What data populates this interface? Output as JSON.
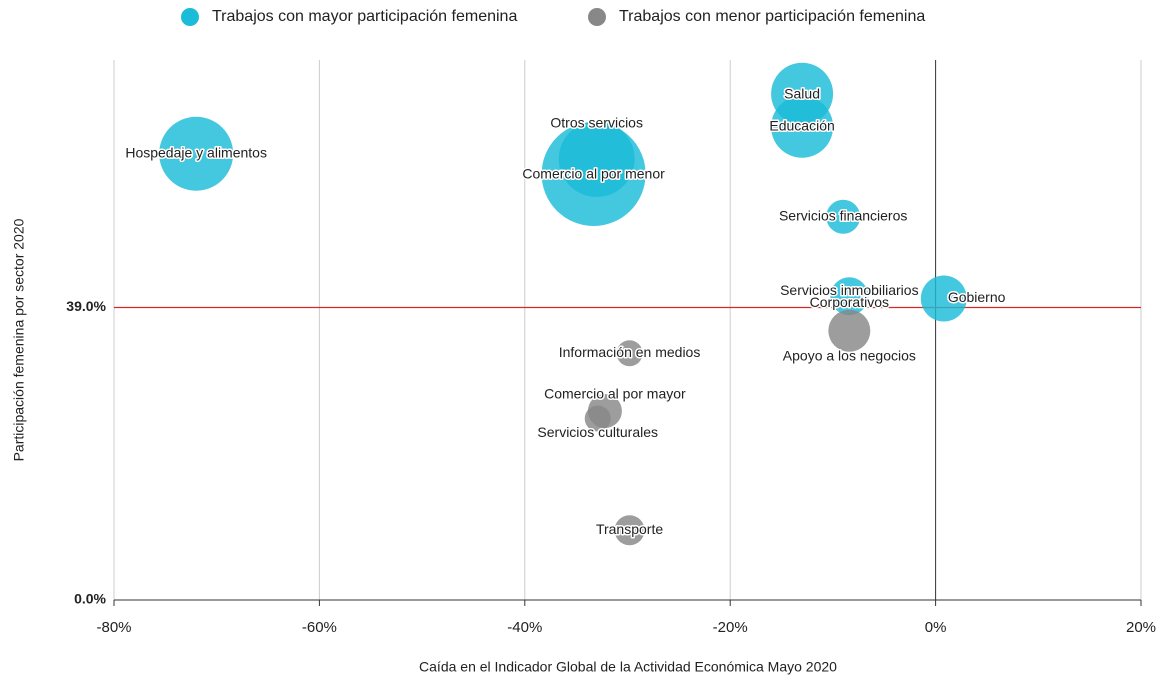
{
  "chart_data": {
    "type": "bubble",
    "xlabel": "Caída en el Indicador Global de la Actividad Económica Mayo 2020",
    "ylabel": "Participación femenina por sector 2020",
    "xlim": [
      -80,
      20
    ],
    "ylim": [
      0,
      72
    ],
    "xticks": [
      {
        "value": -80,
        "label": "-80%"
      },
      {
        "value": -60,
        "label": "-60%"
      },
      {
        "value": -40,
        "label": "-40%"
      },
      {
        "value": -20,
        "label": "-20%"
      },
      {
        "value": 0,
        "label": "0%"
      },
      {
        "value": 20,
        "label": "20%"
      }
    ],
    "yticks": [
      {
        "value": 0,
        "label": "0.0%"
      },
      {
        "value": 39,
        "label": "39.0%"
      }
    ],
    "reference_line": {
      "y": 39,
      "color": "#d62728"
    },
    "grid": true,
    "legend": "top",
    "series": [
      {
        "name": "Trabajos con mayor participación femenina",
        "color": "#1bbcd8",
        "labels": [
          [
            "Hospedaje y alimentos"
          ],
          [
            "Otros servicios"
          ],
          [
            "Comercio al por menor"
          ],
          [
            "Salud"
          ],
          [
            "Educación"
          ],
          [
            "Servicios financieros"
          ],
          [
            "Servicios inmobiliarios",
            "Corporativos"
          ],
          [
            "Gobierno"
          ]
        ],
        "x": [
          -72.0,
          -33.0,
          -33.3,
          -13.0,
          -13.0,
          -9.0,
          -8.4,
          0.8
        ],
        "values": [
          59.5,
          58.8,
          56.8,
          67.5,
          63.1,
          51.1,
          40.5,
          40.2
        ],
        "sizes": [
          37,
          38,
          52,
          31,
          31,
          17,
          19,
          23
        ]
      },
      {
        "name": "Trabajos con menor participación femenina",
        "color": "#888888",
        "labels": [
          [
            "Apoyo a los negocios"
          ],
          [
            "Información en medios"
          ],
          [
            "Comercio al por mayor"
          ],
          [
            "Servicios culturales"
          ],
          [
            "Transporte"
          ]
        ],
        "x": [
          -8.4,
          -29.8,
          -32.2,
          -32.9,
          -29.8
        ],
        "values": [
          35.9,
          32.9,
          25.2,
          24.2,
          9.3
        ],
        "sizes": [
          21,
          13,
          17,
          13,
          15
        ]
      }
    ]
  }
}
